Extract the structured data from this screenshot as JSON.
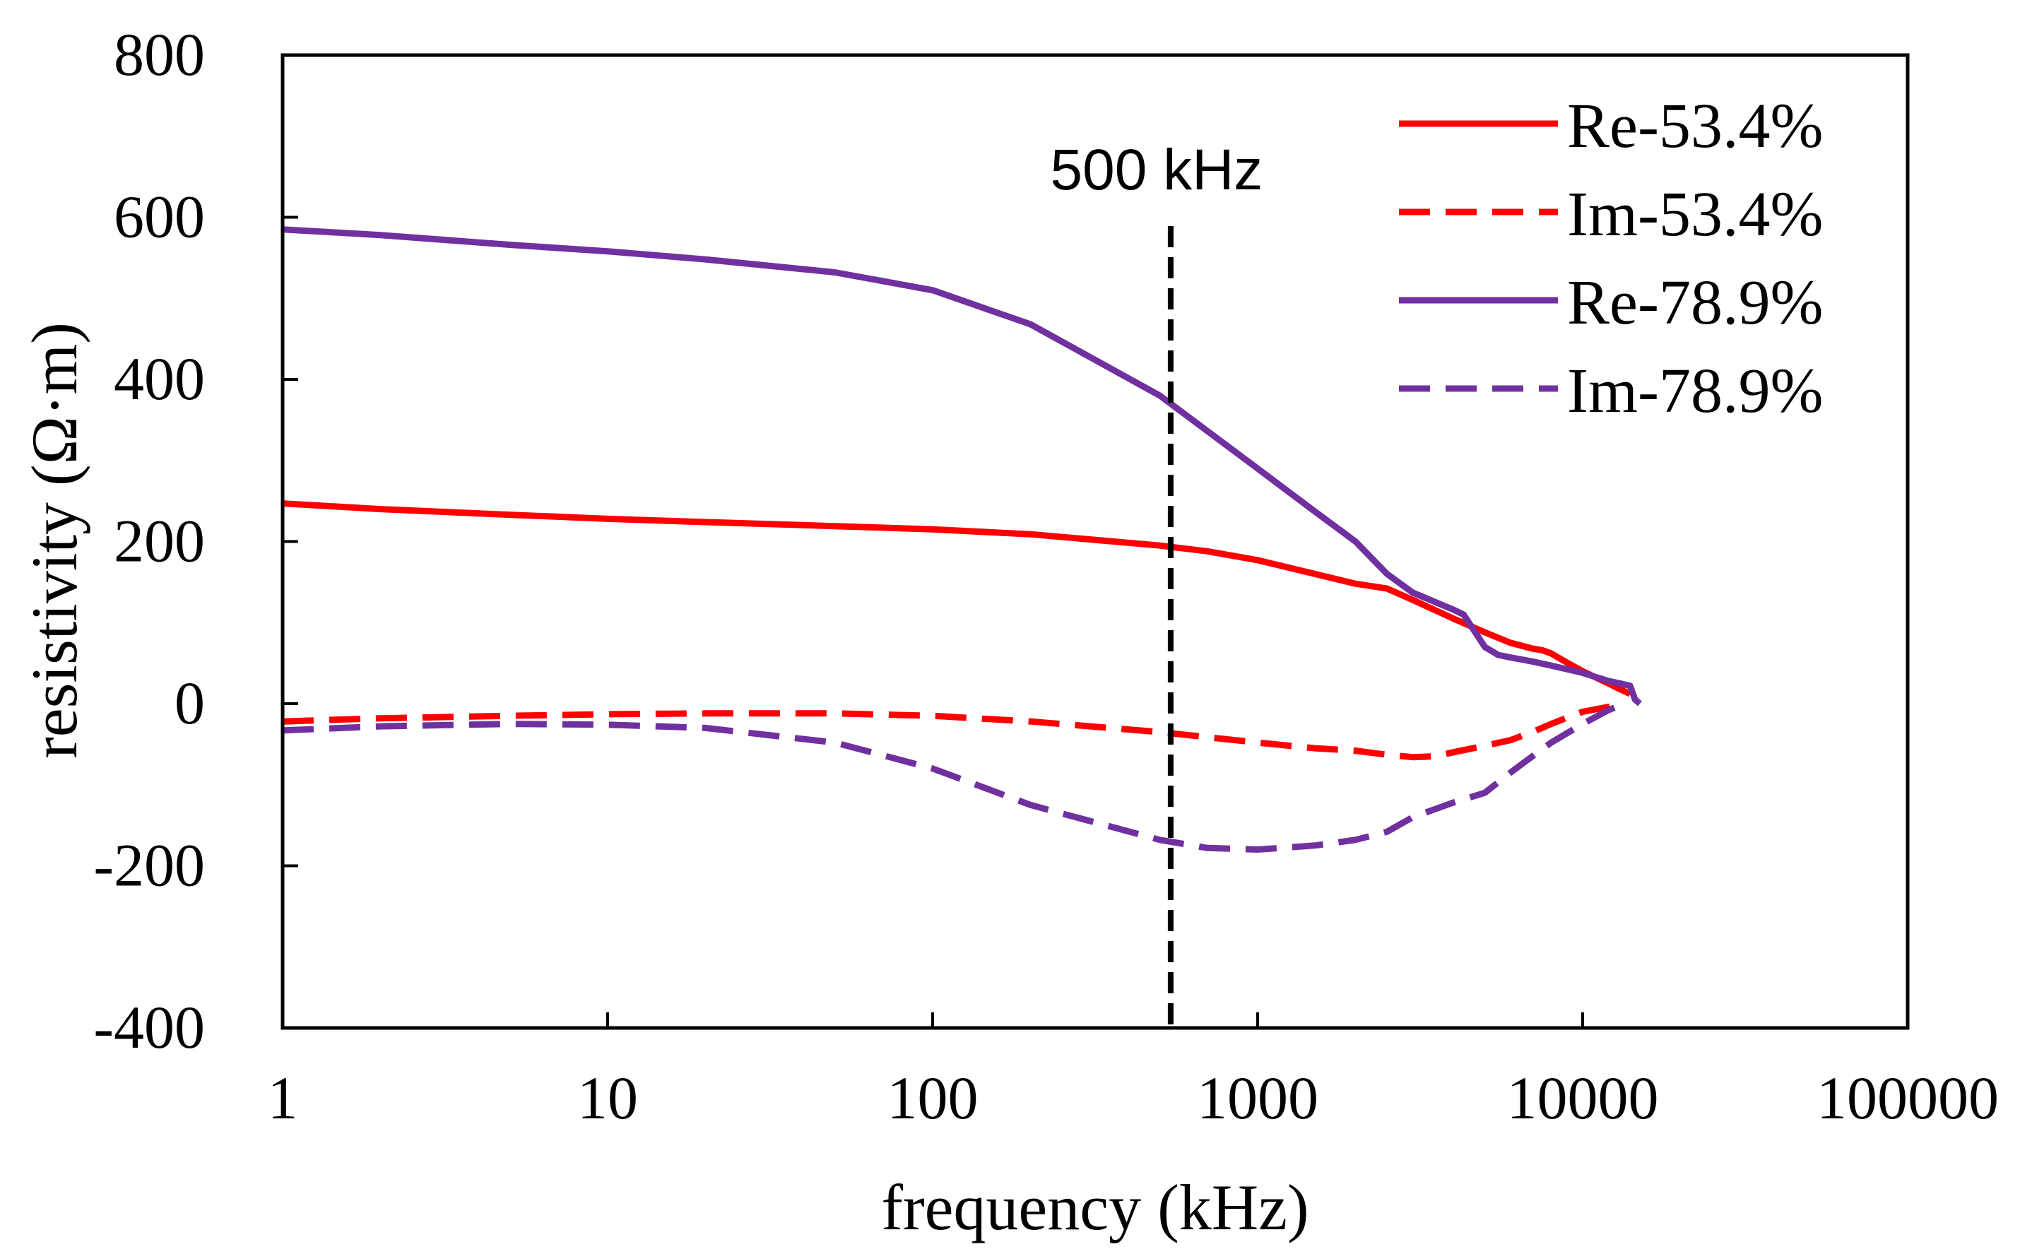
{
  "chart_data": {
    "type": "line",
    "xlabel": "frequency (kHz)",
    "ylabel": "resistivity (Ω·m)",
    "xscale": "log",
    "xlim": [
      1,
      100000
    ],
    "ylim": [
      -400,
      800
    ],
    "xticks": [
      1,
      10,
      100,
      1000,
      10000,
      100000
    ],
    "xtick_labels": [
      "1",
      "10",
      "100",
      "1000",
      "10000",
      "100000"
    ],
    "yticks": [
      -400,
      -200,
      0,
      200,
      400,
      600,
      800
    ],
    "ytick_labels": [
      "-400",
      "-200",
      "0",
      "200",
      "400",
      "600",
      "800"
    ],
    "grid": false,
    "legend_position": "top-right",
    "annotation": {
      "text": "500 kHz",
      "x": 540
    },
    "series": [
      {
        "name": "Re-53.4%",
        "color": "#ff0000",
        "dash": "solid",
        "x": [
          1,
          2,
          5,
          10,
          20,
          50,
          100,
          200,
          500,
          700,
          1000,
          1500,
          2000,
          2500,
          3000,
          4000,
          5000,
          6000,
          7000,
          7500,
          8000,
          9000,
          10000,
          12000,
          13000,
          14000
        ],
        "y": [
          247,
          240,
          233,
          228,
          224,
          219,
          215,
          209,
          195,
          188,
          177,
          160,
          148,
          142,
          128,
          105,
          88,
          75,
          68,
          66,
          62,
          50,
          40,
          25,
          18,
          12
        ]
      },
      {
        "name": "Im-53.4%",
        "color": "#ff0000",
        "dash": "dashed",
        "x": [
          1,
          2,
          5,
          10,
          20,
          50,
          100,
          200,
          500,
          1000,
          1500,
          2000,
          2500,
          3000,
          3500,
          4000,
          5000,
          6000,
          7000,
          8000,
          9000,
          10000,
          12000,
          13500
        ],
        "y": [
          -22,
          -18,
          -15,
          -13,
          -12,
          -12,
          -15,
          -22,
          -35,
          -48,
          -55,
          -58,
          -63,
          -66,
          -65,
          -60,
          -52,
          -45,
          -35,
          -25,
          -17,
          -10,
          -4,
          0
        ]
      },
      {
        "name": "Re-78.9%",
        "color": "#7030a0",
        "dash": "solid",
        "x": [
          1,
          2,
          5,
          10,
          20,
          50,
          100,
          200,
          500,
          1000,
          1500,
          2000,
          2500,
          3000,
          4000,
          4300,
          5000,
          5500,
          6000,
          7000,
          8000,
          10000,
          12000,
          13000,
          14000,
          14500,
          15000
        ],
        "y": [
          585,
          578,
          566,
          558,
          548,
          532,
          510,
          468,
          380,
          290,
          237,
          200,
          160,
          137,
          116,
          110,
          70,
          60,
          57,
          52,
          47,
          38,
          28,
          25,
          22,
          5,
          0
        ]
      },
      {
        "name": "Im-78.9%",
        "color": "#7030a0",
        "dash": "dashed",
        "x": [
          1,
          2,
          5,
          10,
          20,
          50,
          100,
          200,
          500,
          700,
          1000,
          1500,
          2000,
          2500,
          3000,
          4000,
          5000,
          6000,
          7000,
          8000,
          10000,
          12000,
          13500
        ],
        "y": [
          -33,
          -28,
          -25,
          -26,
          -30,
          -48,
          -80,
          -125,
          -168,
          -178,
          -180,
          -175,
          -168,
          -158,
          -140,
          -122,
          -110,
          -85,
          -65,
          -48,
          -25,
          -8,
          0
        ]
      }
    ]
  }
}
